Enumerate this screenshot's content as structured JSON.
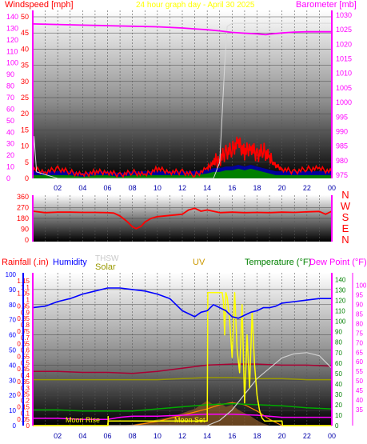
{
  "header": {
    "windspeed_label": "Windspeed [mph]",
    "graph_title": "24 hour graph day - April 30 2025",
    "barometer_label": "Barometer [mb]"
  },
  "colors": {
    "wind_speed": "#ff0000",
    "wind_gust": "#ffffff",
    "wind_dark": "#0000aa",
    "wind_green": "#008000",
    "barometer": "#ff00ff",
    "direction": "#ff0000",
    "rainfall": "#ff0000",
    "humidity": "#0000ff",
    "solar": "#999900",
    "thsw": "#c0c0c0",
    "uv": "#ffff00",
    "temperature": "#00aa00",
    "dew_point": "#ff00ff",
    "frame": "#ff00ff",
    "moon": "#ffff00"
  },
  "chart_data": [
    {
      "type": "line",
      "name": "wind-and-barometer",
      "x_ticks": [
        "02",
        "04",
        "06",
        "08",
        "10",
        "12",
        "14",
        "16",
        "18",
        "20",
        "22",
        "00"
      ],
      "xlim": [
        0,
        24
      ],
      "ylabel": "Windspeed [mph]",
      "ylim": [
        0,
        50
      ],
      "y_ticks": [
        0,
        5,
        10,
        15,
        20,
        25,
        30,
        35,
        40,
        45,
        50
      ],
      "y_ticks_kmh": [
        0,
        10,
        20,
        30,
        40,
        50,
        60,
        70,
        80,
        90,
        100,
        110,
        120,
        130,
        140
      ],
      "y2label": "Barometer [mb]",
      "y2lim": [
        975,
        1030
      ],
      "y2_ticks": [
        975,
        980,
        985,
        990,
        995,
        1000,
        1005,
        1010,
        1015,
        1020,
        1025,
        1030
      ],
      "series": [
        {
          "key": "barometer",
          "axis": "y2",
          "x": [
            0,
            2,
            4,
            6,
            8,
            10,
            12,
            13,
            14,
            15,
            16,
            17,
            18,
            18.7,
            19,
            20,
            21,
            22,
            23,
            24
          ],
          "values": [
            1027,
            1026.8,
            1026.6,
            1026.4,
            1026.2,
            1026,
            1025.6,
            1025.3,
            1025,
            1024.6,
            1024.1,
            1023.8,
            1023.6,
            1023.3,
            1023.5,
            1023.9,
            1024.2,
            1024.3,
            1024.3,
            1024.3
          ]
        },
        {
          "key": "wind_speed",
          "axis": "y",
          "x": [
            0,
            1,
            2,
            3,
            4,
            5,
            6,
            7,
            8,
            9,
            10,
            11,
            12,
            13,
            14,
            14.5,
            15,
            15.5,
            16,
            16.5,
            17,
            17.5,
            18,
            18.5,
            19,
            19.5,
            20,
            21,
            22,
            23,
            24
          ],
          "values": [
            3,
            2,
            3,
            2,
            1,
            2,
            2,
            1,
            2,
            1,
            3,
            2,
            2,
            1,
            3,
            5,
            6,
            8,
            9,
            11,
            8,
            10,
            7,
            9,
            6,
            4,
            3,
            2,
            3,
            3,
            2
          ]
        },
        {
          "key": "wind_gust",
          "axis": "y",
          "x": [
            0,
            0.1,
            0.3,
            2,
            4,
            6,
            8,
            10,
            12,
            14,
            14.5,
            15,
            15.2,
            15.4,
            15.6,
            16,
            18,
            20,
            22,
            24
          ],
          "values": [
            0,
            13,
            2,
            0,
            0,
            0,
            0,
            0,
            0,
            0,
            0,
            5,
            20,
            35,
            47,
            48,
            48,
            48,
            48,
            48
          ]
        }
      ]
    },
    {
      "type": "line",
      "name": "wind-direction",
      "y_ticks": [
        0,
        90,
        180,
        270,
        360
      ],
      "ylim": [
        0,
        360
      ],
      "compass_labels": [
        "N",
        "W",
        "S",
        "E",
        "N"
      ],
      "x": [
        0,
        1,
        2,
        3,
        4,
        5,
        6,
        6.5,
        7,
        7.5,
        8,
        8.3,
        8.7,
        9,
        9.5,
        10,
        11,
        12,
        12.5,
        13,
        13.5,
        14,
        15,
        16,
        17,
        18,
        19,
        20,
        21,
        22,
        23,
        23.5,
        24
      ],
      "values": [
        240,
        228,
        232,
        232,
        230,
        230,
        228,
        225,
        200,
        160,
        110,
        95,
        115,
        150,
        180,
        195,
        205,
        215,
        250,
        265,
        240,
        250,
        228,
        232,
        228,
        230,
        228,
        232,
        230,
        235,
        238,
        215,
        240
      ]
    },
    {
      "type": "line",
      "name": "environment",
      "labels": {
        "rainfall": "Rainfall (.in)",
        "humidity": "Humidity",
        "thsw": "THSW",
        "solar": "Solar",
        "uv": "UV",
        "temperature": "Temperature (°F)",
        "dew_point": "Dew Point (°F)"
      },
      "annotations": [
        "Moon Rise",
        "Moon Set"
      ],
      "rain_ylim": [
        0,
        1.2
      ],
      "rain_ticks": [
        0,
        0.05,
        0.1,
        0.15,
        0.2,
        0.25,
        0.3,
        0.35,
        0.4,
        0.45,
        0.5,
        0.55,
        0.6,
        0.65,
        0.7,
        0.75,
        0.8,
        0.85,
        0.9,
        0.95,
        1,
        1.05,
        1.1,
        1.15
      ],
      "rain_ticks_text": [
        "0",
        "0.05",
        "0.1",
        "0.15",
        "0.2",
        "0.25",
        "0.3",
        "0.35",
        "0.4",
        "0.45",
        "0.5",
        "0.55",
        "0.6",
        "0.65",
        "0.7",
        "0.75",
        "0.8",
        "0.85",
        "0.9",
        "0.95",
        "1",
        "1.05",
        "1.1",
        "1.15"
      ],
      "humidity_ylim": [
        0,
        100
      ],
      "humidity_ticks": [
        0,
        10,
        20,
        30,
        40,
        50,
        60,
        70,
        80,
        90,
        100
      ],
      "temp_ylim": [
        0,
        145
      ],
      "temp_ticks": [
        0,
        10,
        20,
        30,
        40,
        50,
        60,
        70,
        80,
        90,
        100,
        110,
        120,
        130,
        140
      ],
      "dew_ylim": [
        30,
        104
      ],
      "dew_ticks": [
        35,
        40,
        45,
        50,
        55,
        60,
        65,
        70,
        75,
        80,
        85,
        90,
        95,
        100
      ],
      "series": [
        {
          "key": "humidity",
          "axis": "humidity",
          "x": [
            0,
            1,
            2,
            3,
            4,
            5,
            6,
            7,
            8,
            9,
            10,
            11,
            12,
            12.5,
            13,
            13.5,
            14,
            14.5,
            15,
            15.5,
            16,
            16.5,
            17,
            17.5,
            18,
            18.5,
            19,
            19.5,
            20,
            21,
            22,
            23,
            24
          ],
          "values": [
            78,
            79,
            82,
            84,
            87,
            89,
            91,
            91,
            90,
            89,
            87,
            84,
            76,
            74,
            72,
            75,
            76,
            80,
            78,
            76,
            72,
            71,
            73,
            75,
            76,
            78,
            78,
            79,
            81,
            82,
            83,
            84,
            84
          ]
        },
        {
          "key": "uv",
          "axis": "humidity",
          "x": [
            0,
            6,
            6.05,
            13.9,
            14,
            14.05,
            15.2,
            15.3,
            15.4,
            15.5,
            15.6,
            15.8,
            16,
            16.2,
            16.4,
            16.6,
            16.8,
            17,
            17.2,
            17.4,
            17.6,
            17.8,
            18,
            18.2,
            18.4,
            18.6,
            18.8,
            19,
            20,
            20.05,
            24
          ],
          "values": [
            0,
            0,
            3,
            3,
            3,
            88,
            88,
            82,
            60,
            88,
            85,
            70,
            45,
            88,
            50,
            35,
            80,
            15,
            60,
            25,
            75,
            40,
            20,
            10,
            5,
            3,
            3,
            3,
            3,
            0,
            0
          ]
        },
        {
          "key": "thsw",
          "axis": "temp",
          "x": [
            0,
            14,
            15,
            16,
            17,
            18,
            19,
            20,
            21,
            22,
            23,
            24
          ],
          "values": [
            0,
            0,
            5,
            15,
            30,
            45,
            55,
            65,
            69,
            70,
            67,
            55
          ]
        },
        {
          "key": "temperature_high",
          "axis": "temp",
          "x": [
            0,
            2,
            4,
            6,
            8,
            10,
            12,
            14,
            16,
            18,
            20,
            22,
            24
          ],
          "values": [
            52,
            52,
            51,
            51,
            50,
            52,
            55,
            58,
            59,
            59,
            58,
            58,
            57
          ]
        },
        {
          "key": "solar",
          "axis": "temp",
          "x": [
            0,
            2,
            4,
            6,
            8,
            10,
            12,
            14,
            16,
            18,
            20,
            22,
            24
          ],
          "values": [
            44,
            44,
            44,
            44,
            44,
            44,
            45,
            46,
            46,
            45,
            45,
            44,
            44
          ]
        },
        {
          "key": "temperature",
          "axis": "temp",
          "x": [
            0,
            2,
            4,
            6,
            8,
            10,
            12,
            14,
            16,
            18,
            20,
            22,
            24
          ],
          "values": [
            15,
            15,
            14,
            14,
            14,
            16,
            18,
            20,
            21,
            20,
            19,
            17,
            16
          ]
        },
        {
          "key": "dew_point",
          "axis": "temp",
          "x": [
            0,
            2,
            4,
            6,
            7,
            8,
            10,
            12,
            14,
            16,
            18,
            20,
            22,
            24
          ],
          "values": [
            7,
            7,
            6,
            6,
            8,
            9,
            9,
            10,
            11,
            11,
            10,
            8,
            8,
            8
          ]
        },
        {
          "key": "solar_radiation",
          "axis": "temp",
          "x": [
            0,
            7,
            8,
            9,
            10,
            11,
            12,
            12.5,
            13,
            13.5,
            14,
            14.5,
            15,
            15.5,
            16,
            16.5,
            17,
            17.5,
            18,
            18.5,
            19,
            24
          ],
          "values": [
            0,
            0,
            1,
            3,
            6,
            8,
            12,
            14,
            16,
            20,
            24,
            20,
            22,
            18,
            20,
            15,
            12,
            9,
            5,
            2,
            0,
            0
          ]
        },
        {
          "key": "solar_high",
          "axis": "temp",
          "x": [
            0,
            8,
            10,
            12,
            14,
            15,
            16,
            17,
            18,
            19,
            20,
            24
          ],
          "values": [
            0,
            0,
            4,
            10,
            16,
            20,
            22,
            20,
            14,
            6,
            0,
            0
          ]
        }
      ]
    }
  ]
}
